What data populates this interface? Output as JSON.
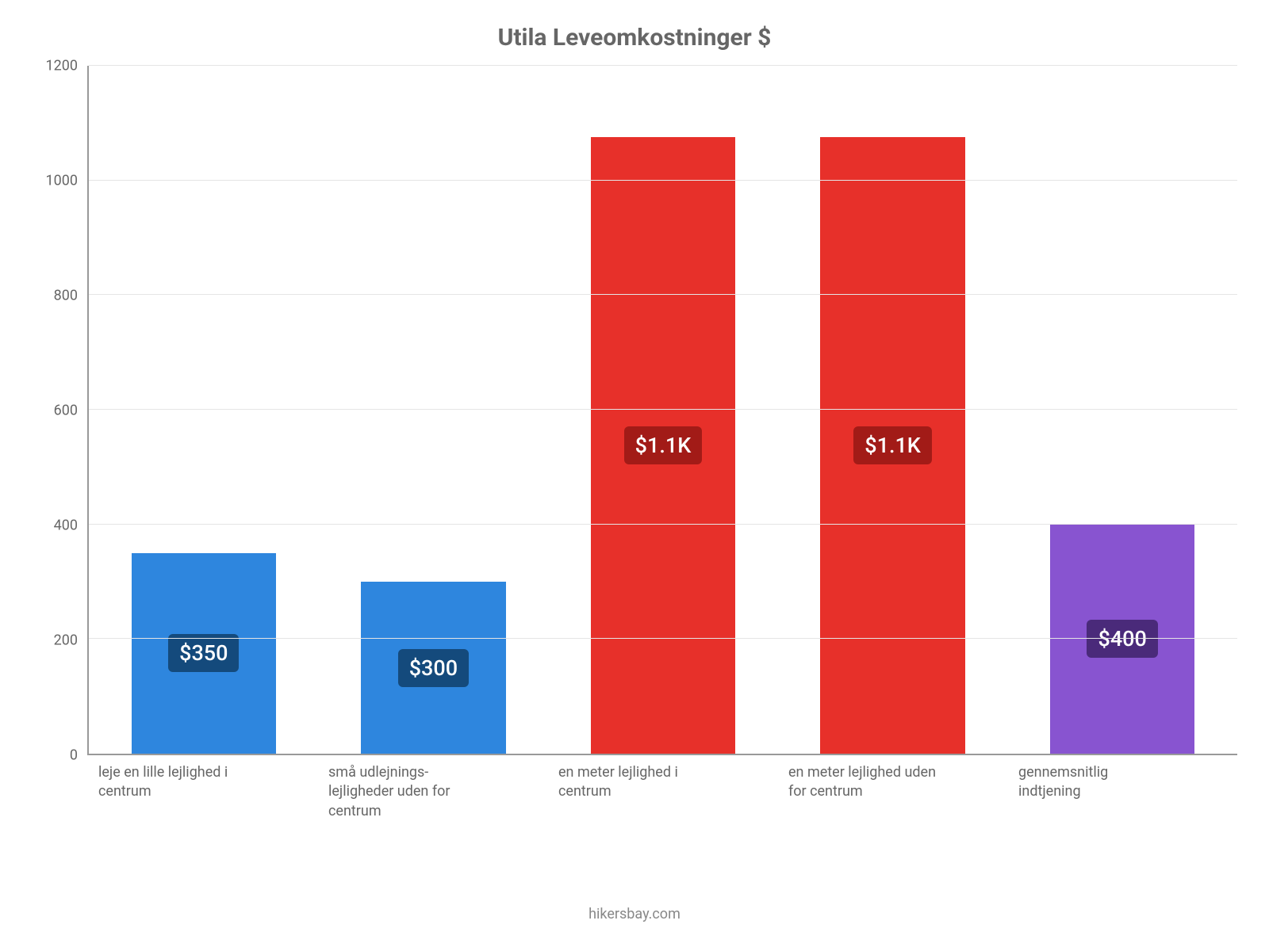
{
  "chart": {
    "type": "bar",
    "title": "Utila Leveomkostninger $",
    "title_fontsize": 30,
    "title_color": "#666666",
    "background_color": "#ffffff",
    "grid_color": "#e5e5e5",
    "axis_color": "#999999",
    "label_color": "#666666",
    "label_fontsize": 18,
    "ylim": [
      0,
      1200
    ],
    "ytick_step": 200,
    "yticks": [
      0,
      200,
      400,
      600,
      800,
      1000,
      1200
    ],
    "bar_width_pct": 63,
    "value_badge_fontsize": 27,
    "categories": [
      "leje en lille lejlighed i centrum",
      "små udlejnings-lejligheder uden for centrum",
      "en meter lejlighed i centrum",
      "en meter lejlighed uden for centrum",
      "gennemsnitlig indtjening"
    ],
    "values": [
      350,
      300,
      1076,
      1076,
      400
    ],
    "value_labels": [
      "$350",
      "$300",
      "$1.1K",
      "$1.1K",
      "$400"
    ],
    "bar_colors": [
      "#2e86de",
      "#2e86de",
      "#e7302a",
      "#e7302a",
      "#8854d0"
    ],
    "badge_bg_colors": [
      "#144a7c",
      "#144a7c",
      "#a21b17",
      "#a21b17",
      "#4a2a7a"
    ]
  },
  "footer": {
    "text": "hikersbay.com",
    "color": "#888888",
    "fontsize": 18
  }
}
